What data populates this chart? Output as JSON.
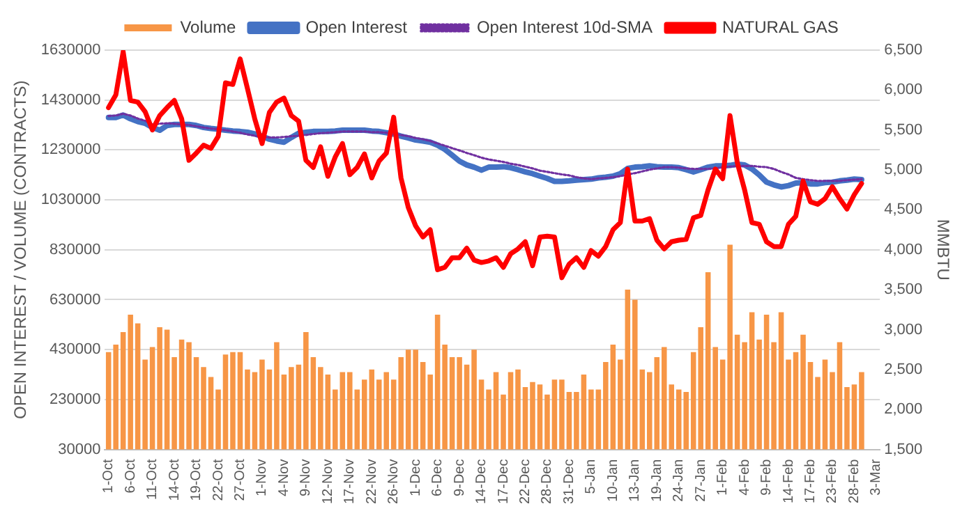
{
  "chart_data": {
    "type": "bar",
    "categories": [
      "1-Oct",
      null,
      null,
      "6-Oct",
      null,
      null,
      "11-Oct",
      null,
      null,
      "14-Oct",
      null,
      null,
      "19-Oct",
      null,
      null,
      "22-Oct",
      null,
      null,
      "27-Oct",
      null,
      null,
      "1-Nov",
      null,
      null,
      "4-Nov",
      null,
      null,
      "9-Nov",
      null,
      null,
      "12-Nov",
      null,
      null,
      "17-Nov",
      null,
      null,
      "22-Nov",
      null,
      null,
      "26-Nov",
      null,
      null,
      "1-Dec",
      null,
      null,
      "6-Dec",
      null,
      null,
      "9-Dec",
      null,
      null,
      "14-Dec",
      null,
      null,
      "17-Dec",
      null,
      null,
      "22-Dec",
      null,
      null,
      "28-Dec",
      null,
      null,
      "31-Dec",
      null,
      null,
      "5-Jan",
      null,
      null,
      "10-Jan",
      null,
      null,
      "13-Jan",
      null,
      null,
      "19-Jan",
      null,
      null,
      "24-Jan",
      null,
      null,
      "27-Jan",
      null,
      null,
      "1-Feb",
      null,
      null,
      "4-Feb",
      null,
      null,
      "9-Feb",
      null,
      null,
      "14-Feb",
      null,
      null,
      "17-Feb",
      null,
      null,
      "23-Feb",
      null,
      null,
      "28-Feb",
      null,
      null,
      "3-Mar"
    ],
    "series": [
      {
        "name": "Volume",
        "color": "#f79646",
        "values": [
          420000,
          450000,
          500000,
          570000,
          535000,
          390000,
          440000,
          520000,
          510000,
          400000,
          470000,
          460000,
          400000,
          360000,
          320000,
          270000,
          410000,
          420000,
          420000,
          350000,
          340000,
          390000,
          350000,
          460000,
          330000,
          360000,
          370000,
          500000,
          400000,
          360000,
          330000,
          270000,
          340000,
          340000,
          270000,
          310000,
          350000,
          310000,
          340000,
          310000,
          400000,
          430000,
          430000,
          380000,
          330000,
          570000,
          450000,
          400000,
          400000,
          370000,
          430000,
          310000,
          270000,
          340000,
          250000,
          340000,
          350000,
          280000,
          300000,
          290000,
          250000,
          310000,
          310000,
          260000,
          260000,
          330000,
          270000,
          270000,
          380000,
          450000,
          390000,
          670000,
          630000,
          350000,
          340000,
          400000,
          440000,
          290000,
          270000,
          260000,
          420000,
          520000,
          740000,
          440000,
          390000,
          850000,
          490000,
          460000,
          580000,
          470000,
          570000,
          460000,
          580000,
          390000,
          420000,
          490000,
          380000,
          320000,
          390000,
          340000,
          460000,
          280000,
          290000,
          340000,
          null,
          null
        ]
      },
      {
        "name": "Open Interest",
        "type": "line",
        "color": "#4472c4",
        "line_style": "solid",
        "values": [
          1360000,
          1360000,
          1370000,
          1355000,
          1344000,
          1337000,
          1320000,
          1309000,
          1328000,
          1332000,
          1332000,
          1332000,
          1328000,
          1320000,
          1316000,
          1313000,
          1309000,
          1306000,
          1304000,
          1301000,
          1294000,
          1285000,
          1273000,
          1266000,
          1261000,
          1280000,
          1297000,
          1301000,
          1304000,
          1304000,
          1304000,
          1306000,
          1309000,
          1309000,
          1309000,
          1309000,
          1306000,
          1304000,
          1299000,
          1294000,
          1285000,
          1278000,
          1270000,
          1266000,
          1261000,
          1249000,
          1232000,
          1209000,
          1185000,
          1170000,
          1161000,
          1149000,
          1161000,
          1161000,
          1163000,
          1159000,
          1151000,
          1142000,
          1135000,
          1125000,
          1116000,
          1104000,
          1104000,
          1106000,
          1109000,
          1111000,
          1113000,
          1118000,
          1121000,
          1125000,
          1135000,
          1156000,
          1161000,
          1163000,
          1166000,
          1163000,
          1161000,
          1161000,
          1159000,
          1151000,
          1142000,
          1151000,
          1161000,
          1166000,
          1166000,
          1168000,
          1173000,
          1170000,
          1154000,
          1130000,
          1101000,
          1090000,
          1082000,
          1087000,
          1097000,
          1099000,
          1094000,
          1094000,
          1099000,
          1101000,
          1106000,
          1109000,
          1113000,
          1111000,
          null,
          null
        ]
      },
      {
        "name": "Open Interest 10d-SMA",
        "type": "line",
        "color": "#7030a0",
        "line_style": "dotted",
        "values": [
          1366000,
          1368000,
          1375000,
          1368000,
          1356000,
          1347000,
          1332000,
          1335000,
          1337000,
          1335000,
          1332000,
          1330000,
          1325000,
          1320000,
          1316000,
          1313000,
          1309000,
          1304000,
          1299000,
          1292000,
          1287000,
          1282000,
          1280000,
          1280000,
          1282000,
          1285000,
          1287000,
          1290000,
          1294000,
          1297000,
          1299000,
          1301000,
          1304000,
          1304000,
          1304000,
          1304000,
          1301000,
          1301000,
          1299000,
          1294000,
          1290000,
          1285000,
          1278000,
          1273000,
          1266000,
          1256000,
          1247000,
          1237000,
          1228000,
          1218000,
          1209000,
          1199000,
          1192000,
          1187000,
          1182000,
          1175000,
          1170000,
          1163000,
          1156000,
          1147000,
          1142000,
          1137000,
          1132000,
          1128000,
          1121000,
          1116000,
          1113000,
          1116000,
          1118000,
          1121000,
          1125000,
          1132000,
          1137000,
          1144000,
          1151000,
          1156000,
          1161000,
          1161000,
          1159000,
          1156000,
          1154000,
          1154000,
          1154000,
          1156000,
          1161000,
          1163000,
          1166000,
          1166000,
          1166000,
          1163000,
          1161000,
          1154000,
          1142000,
          1132000,
          1118000,
          1113000,
          1109000,
          1106000,
          1106000,
          1106000,
          1106000,
          1109000,
          1111000,
          1113000,
          null,
          null
        ]
      },
      {
        "name": "NATURAL GAS",
        "type": "line",
        "axis": "y2",
        "color": "#ff0000",
        "line_style": "solid",
        "values": [
          5780,
          5940,
          6480,
          5870,
          5850,
          5730,
          5500,
          5680,
          5780,
          5870,
          5640,
          5120,
          5210,
          5310,
          5270,
          5420,
          6090,
          6070,
          6390,
          6020,
          5640,
          5330,
          5720,
          5850,
          5900,
          5680,
          5610,
          5120,
          5030,
          5290,
          4920,
          5160,
          5330,
          4940,
          5030,
          5200,
          4900,
          5110,
          5210,
          5660,
          4900,
          4530,
          4300,
          4160,
          4250,
          3750,
          3780,
          3900,
          3900,
          4020,
          3870,
          3840,
          3860,
          3900,
          3780,
          3950,
          4010,
          4100,
          3800,
          4160,
          4170,
          4160,
          3650,
          3820,
          3900,
          3780,
          3990,
          3920,
          4040,
          4250,
          4340,
          5010,
          4360,
          4360,
          4390,
          4120,
          4010,
          4100,
          4120,
          4130,
          4400,
          4430,
          4750,
          5010,
          4890,
          5680,
          5090,
          4750,
          4340,
          4320,
          4100,
          4040,
          4040,
          4320,
          4420,
          4860,
          4600,
          4570,
          4640,
          4790,
          4640,
          4510,
          4690,
          4830,
          null,
          null
        ]
      }
    ],
    "ylabel": "OPEN INTEREST / VOLUME (CONTRACTS)",
    "y2label": "MMBTU",
    "ylim": [
      30000,
      1630000
    ],
    "yticks": [
      30000,
      230000,
      430000,
      630000,
      830000,
      1030000,
      1230000,
      1430000,
      1630000
    ],
    "y2lim": [
      1500,
      6500
    ],
    "y2ticks": [
      {
        "value": 1500,
        "label": "1,500"
      },
      {
        "value": 2000,
        "label": "2,000"
      },
      {
        "value": 2500,
        "label": "2,500"
      },
      {
        "value": 3000,
        "label": "3,000"
      },
      {
        "value": 3500,
        "label": "3,500"
      },
      {
        "value": 4000,
        "label": "4,000"
      },
      {
        "value": 4500,
        "label": "4,500"
      },
      {
        "value": 5000,
        "label": "5,000"
      },
      {
        "value": 5500,
        "label": "5,500"
      },
      {
        "value": 6000,
        "label": "6,000"
      },
      {
        "value": 6500,
        "label": "6,500"
      }
    ],
    "grid": "y",
    "legend": "top",
    "marker": "none"
  }
}
